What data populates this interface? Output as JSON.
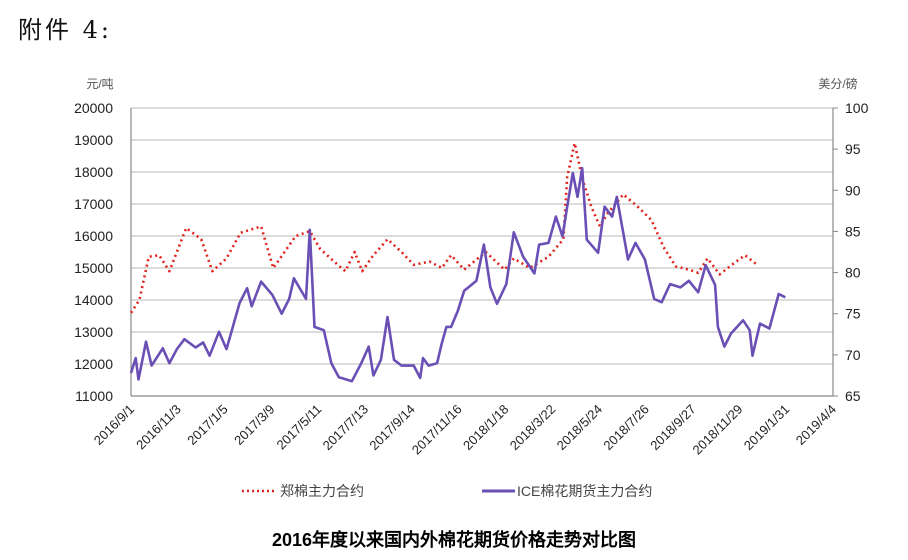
{
  "heading": "附件 4:",
  "chart_data": {
    "type": "line",
    "title": "2016年度以来国内外棉花期货价格走势对比图",
    "x_tick_labels": [
      "2016/9/1",
      "2016/11/3",
      "2017/1/5",
      "2017/3/9",
      "2017/5/11",
      "2017/7/13",
      "2017/9/14",
      "2017/11/16",
      "2018/1/18",
      "2018/3/22",
      "2018/5/24",
      "2018/7/26",
      "2018/9/27",
      "2018/11/29",
      "2019/1/31",
      "2019/4/4"
    ],
    "x_units_note": "x = position in tick-label index units",
    "y_left": {
      "label": "元/吨",
      "range": [
        11000,
        20000
      ],
      "ticks": [
        11000,
        12000,
        13000,
        14000,
        15000,
        16000,
        17000,
        18000,
        19000,
        20000
      ]
    },
    "y_right": {
      "label": "美分/磅",
      "range": [
        65,
        100
      ],
      "ticks": [
        65,
        70,
        75,
        80,
        85,
        90,
        95,
        100
      ]
    },
    "grid": true,
    "legend_position": "bottom",
    "series": [
      {
        "name": "郑棉主力合约",
        "axis": "left",
        "style": "dotted",
        "color": "#e0231c",
        "x": [
          0,
          0.18,
          0.38,
          0.6,
          0.82,
          1.18,
          1.5,
          1.74,
          2.04,
          2.34,
          2.78,
          3.04,
          3.52,
          3.82,
          4.04,
          4.34,
          4.58,
          4.78,
          4.94,
          5.18,
          5.48,
          5.78,
          6.04,
          6.38,
          6.64,
          6.84,
          7.12,
          7.58,
          7.98,
          8.18,
          8.52,
          8.92,
          9.24,
          9.32,
          9.48,
          9.64,
          9.84,
          10.02,
          10.18,
          10.52,
          10.84,
          11.12,
          11.38,
          11.64,
          11.92,
          12.12,
          12.32,
          12.58,
          12.84,
          13.12,
          13.38
        ],
        "y": [
          13600,
          14000,
          15350,
          15400,
          14900,
          16250,
          15900,
          14900,
          15300,
          16100,
          16300,
          15000,
          16000,
          16150,
          15600,
          15200,
          14900,
          15500,
          14900,
          15400,
          15900,
          15500,
          15100,
          15200,
          15000,
          15400,
          14950,
          15500,
          14950,
          15300,
          15000,
          15350,
          15900,
          17850,
          18900,
          17800,
          16900,
          16300,
          16700,
          17300,
          16900,
          16500,
          15650,
          15050,
          14950,
          14850,
          15300,
          14800,
          15100,
          15400,
          15100
        ]
      },
      {
        "name": "ICE棉花期货主力合约",
        "axis": "right",
        "style": "solid",
        "color": "#6a4fb5",
        "x": [
          0,
          0.1,
          0.16,
          0.32,
          0.44,
          0.68,
          0.82,
          0.98,
          1.14,
          1.38,
          1.54,
          1.68,
          1.88,
          2.04,
          2.32,
          2.48,
          2.58,
          2.78,
          3.02,
          3.22,
          3.38,
          3.48,
          3.74,
          3.82,
          3.92,
          4.12,
          4.28,
          4.44,
          4.72,
          4.92,
          5.08,
          5.18,
          5.34,
          5.48,
          5.62,
          5.78,
          6.04,
          6.18,
          6.24,
          6.36,
          6.54,
          6.64,
          6.74,
          6.84,
          6.98,
          7.12,
          7.38,
          7.54,
          7.68,
          7.82,
          8.02,
          8.18,
          8.38,
          8.62,
          8.72,
          8.92,
          9.08,
          9.22,
          9.32,
          9.44,
          9.54,
          9.64,
          9.74,
          9.98,
          10.12,
          10.28,
          10.38,
          10.62,
          10.78,
          10.98,
          11.18,
          11.34,
          11.52,
          11.74,
          11.92,
          12.12,
          12.28,
          12.48,
          12.54,
          12.68,
          12.82,
          13.08,
          13.22,
          13.28,
          13.44,
          13.64,
          13.84,
          13.98
        ],
        "y": [
          67.8,
          69.6,
          67.0,
          71.6,
          68.7,
          70.8,
          69.0,
          70.7,
          71.9,
          70.9,
          71.5,
          69.9,
          72.8,
          70.7,
          76.3,
          78.1,
          75.9,
          78.9,
          77.3,
          75.0,
          76.8,
          79.3,
          76.8,
          85.2,
          73.4,
          73.0,
          69.0,
          67.3,
          66.8,
          69.0,
          71.0,
          67.5,
          69.4,
          74.6,
          69.4,
          68.7,
          68.7,
          67.2,
          69.6,
          68.7,
          69.0,
          71.4,
          73.4,
          73.4,
          75.3,
          77.8,
          79.0,
          83.4,
          78.2,
          76.2,
          78.6,
          84.9,
          81.9,
          79.9,
          83.4,
          83.6,
          86.8,
          84.4,
          88.0,
          92.1,
          89.2,
          92.7,
          84.0,
          82.4,
          88.0,
          86.8,
          89.2,
          81.6,
          83.6,
          81.6,
          76.8,
          76.4,
          78.6,
          78.2,
          79.0,
          77.6,
          80.9,
          78.5,
          73.4,
          71.0,
          72.6,
          74.2,
          73.0,
          69.9,
          73.8,
          73.2,
          77.4,
          77.0
        ]
      }
    ]
  }
}
